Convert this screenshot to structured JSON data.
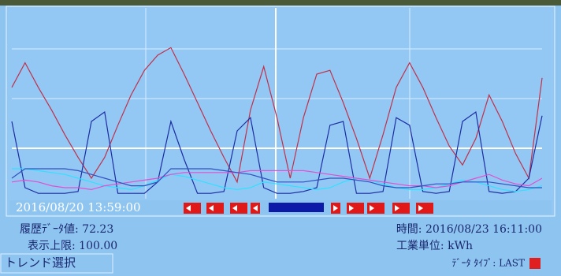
{
  "trend": {
    "ylim": [
      0,
      100
    ],
    "series": [
      {
        "color": "#c0304a",
        "values": [
          58,
          71,
          58,
          46,
          33,
          21,
          10,
          21,
          38,
          54,
          67,
          75,
          79,
          65,
          50,
          35,
          21,
          8,
          46,
          69,
          42,
          10,
          42,
          65,
          67,
          50,
          31,
          10,
          33,
          58,
          71,
          58,
          42,
          27,
          17,
          31,
          54,
          40,
          23,
          10,
          63
        ]
      },
      {
        "color": "#1c2ca0",
        "values": [
          40,
          5,
          2,
          2,
          2,
          3,
          40,
          45,
          2,
          2,
          2,
          8,
          40,
          20,
          2,
          2,
          3,
          35,
          42,
          5,
          2,
          2,
          3,
          5,
          38,
          40,
          2,
          2,
          3,
          42,
          38,
          3,
          2,
          3,
          40,
          45,
          3,
          2,
          3,
          10,
          43
        ]
      },
      {
        "color": "#30e0ff",
        "values": [
          15,
          15,
          14,
          13,
          12,
          10,
          8,
          6,
          5,
          4,
          6,
          9,
          12,
          11,
          9,
          7,
          5,
          4,
          5,
          8,
          7,
          6,
          5,
          4,
          5,
          8,
          10,
          9,
          7,
          5,
          4,
          4,
          5,
          7,
          9,
          8,
          6,
          4,
          3,
          4,
          6
        ]
      },
      {
        "color": "#e050d0",
        "values": [
          8,
          9,
          8,
          6,
          5,
          5,
          4,
          6,
          7,
          8,
          9,
          10,
          12,
          13,
          13,
          13,
          13,
          13,
          14,
          14,
          14,
          14,
          14,
          13,
          12,
          11,
          10,
          9,
          8,
          7,
          6,
          6,
          5,
          6,
          8,
          10,
          12,
          9,
          7,
          6,
          10
        ]
      },
      {
        "color": "#3050c0",
        "values": [
          10,
          15,
          15,
          15,
          15,
          14,
          12,
          10,
          8,
          6,
          6,
          8,
          15,
          15,
          15,
          15,
          14,
          13,
          12,
          10,
          8,
          8,
          8,
          9,
          10,
          10,
          9,
          8,
          6,
          5,
          5,
          6,
          7,
          7,
          8,
          8,
          8,
          7,
          6,
          5,
          5
        ]
      }
    ]
  },
  "time_bar": {
    "timestamp": "2016/08/20 13:59:00"
  },
  "status": {
    "history_value": "履歴ﾃﾞｰﾀ値: 72.23",
    "time": "時間: 2016/08/23 16:11:00",
    "upper_limit": "表示上限: 100.00",
    "unit": "工業単位: kWh",
    "trend_select": "トレンド選択",
    "data_type": "ﾃﾞｰﾀ ﾀｲﾌﾟ: LAST"
  }
}
